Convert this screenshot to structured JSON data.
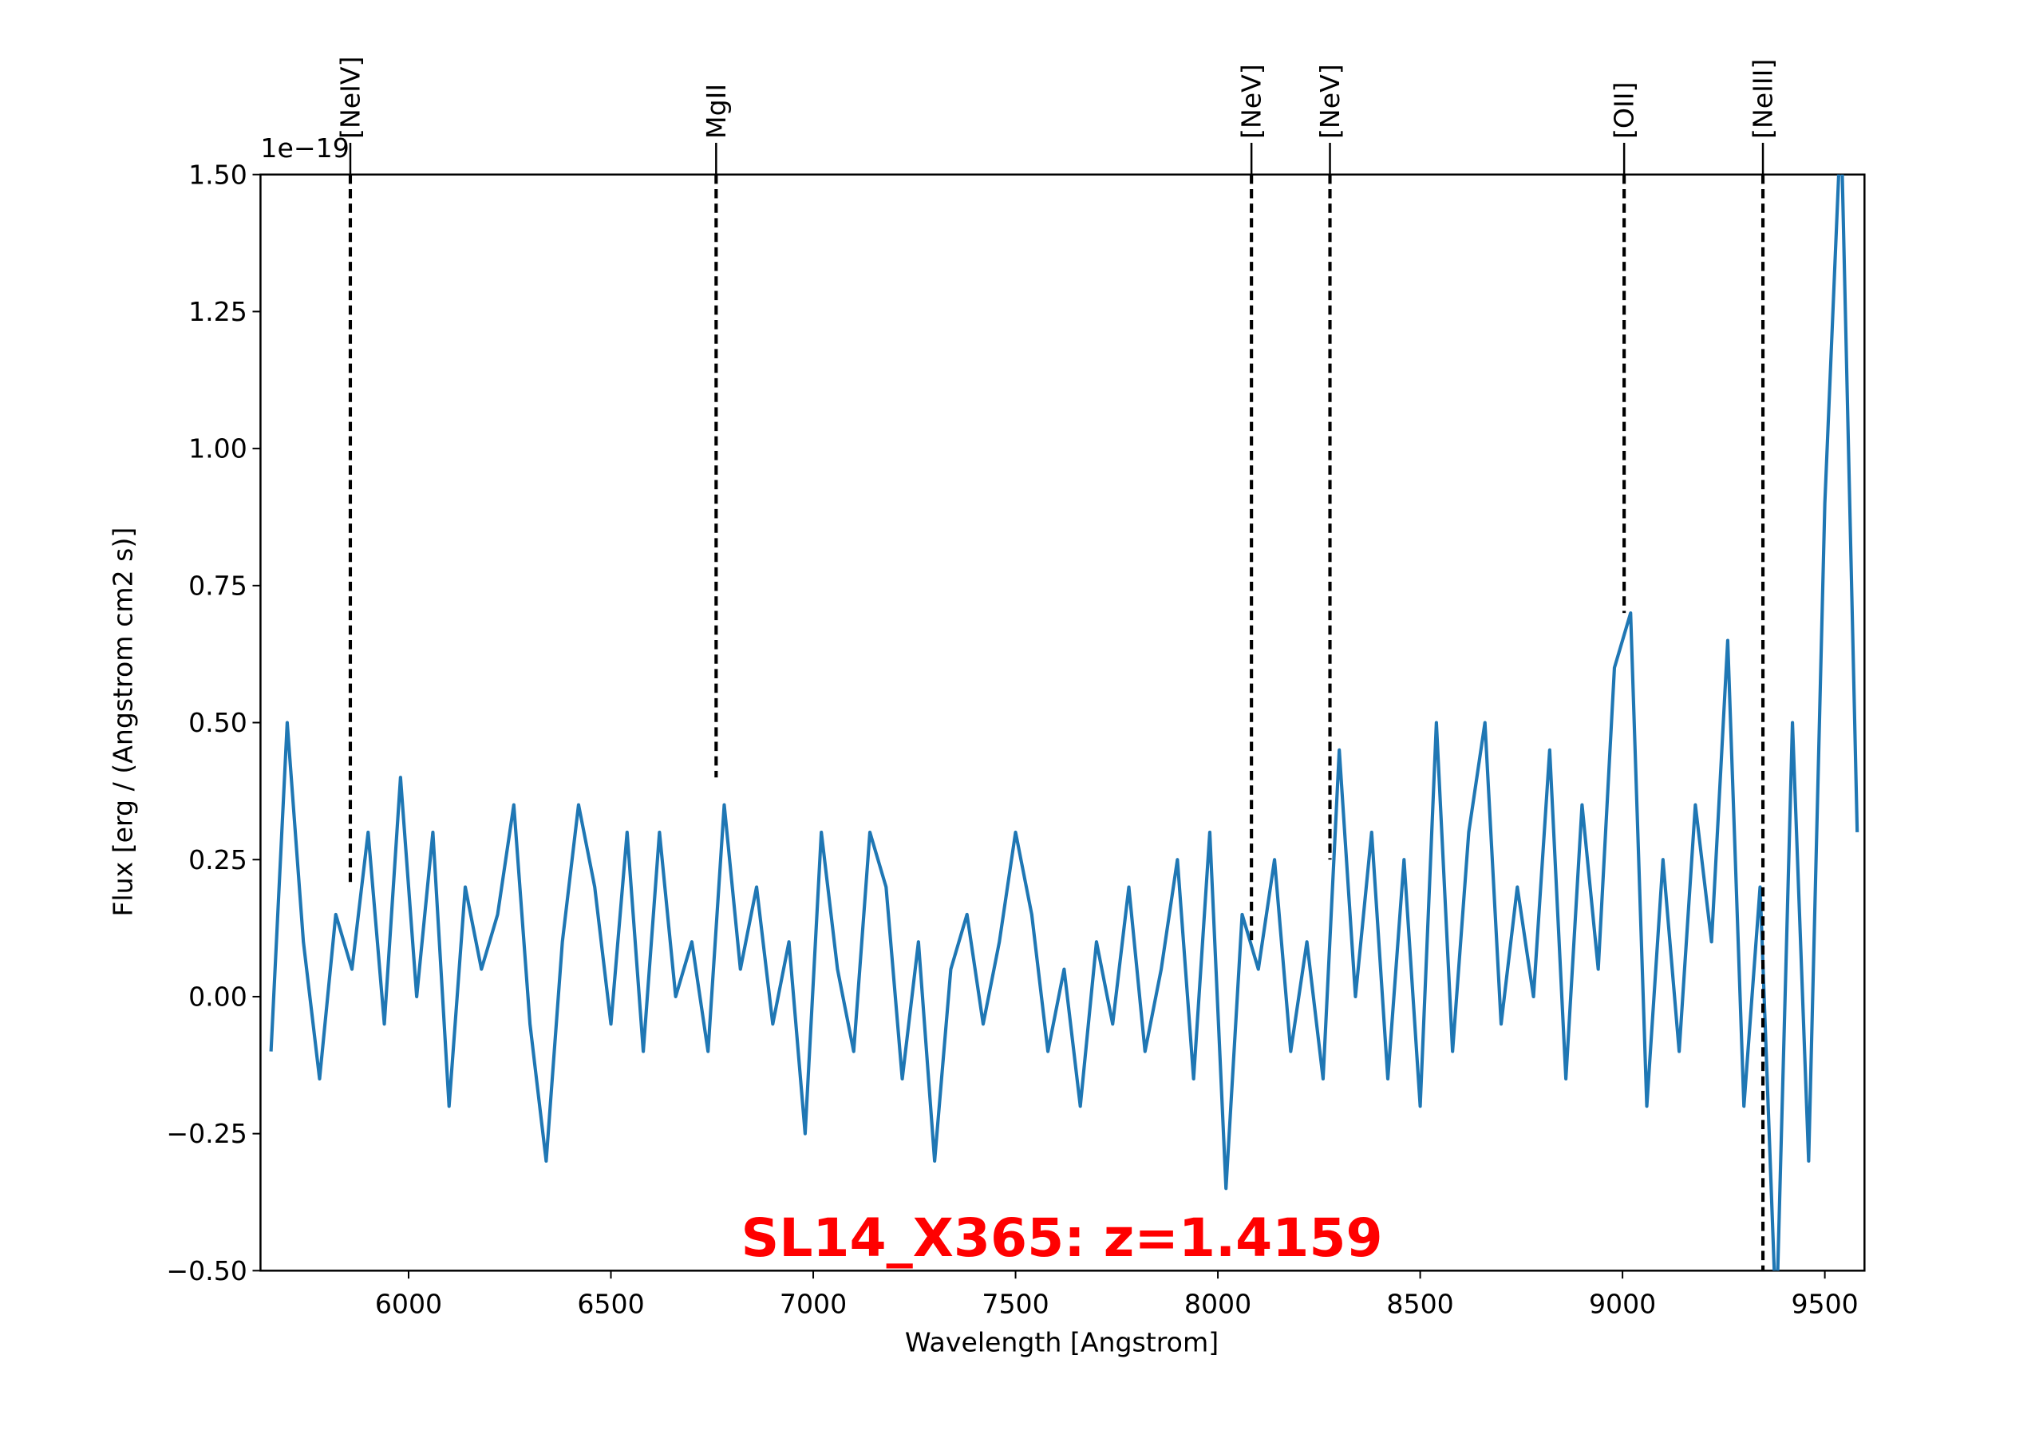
{
  "chart_data": {
    "type": "line",
    "title": "SL14_X365: z=1.4159",
    "xlabel": "Wavelength [Angstrom]",
    "ylabel": "Flux [erg / (Angstrom cm2 s)]",
    "y_offset_label": "1e−19",
    "xlim": [
      5634,
      9598
    ],
    "ylim": [
      -0.5,
      1.5
    ],
    "xticks": [
      6000,
      6500,
      7000,
      7500,
      8000,
      8500,
      9000,
      9500
    ],
    "yticks": [
      {
        "value": -0.5,
        "label": "−0.50"
      },
      {
        "value": -0.25,
        "label": "−0.25"
      },
      {
        "value": 0,
        "label": "0.00"
      },
      0.25,
      {
        "value": 0.5,
        "label": "0.50"
      },
      0.75,
      {
        "value": 1,
        "label": "1.00"
      },
      1.25,
      {
        "value": 1.5,
        "label": "1.50"
      }
    ],
    "x": [
      5660,
      5700,
      5740,
      5780,
      5820,
      5860,
      5900,
      5940,
      5980,
      6020,
      6060,
      6100,
      6140,
      6180,
      6220,
      6260,
      6300,
      6340,
      6380,
      6420,
      6460,
      6500,
      6540,
      6580,
      6620,
      6660,
      6700,
      6740,
      6780,
      6820,
      6860,
      6900,
      6940,
      6980,
      7020,
      7060,
      7100,
      7140,
      7180,
      7220,
      7260,
      7300,
      7340,
      7380,
      7420,
      7460,
      7500,
      7540,
      7580,
      7620,
      7660,
      7700,
      7740,
      7780,
      7820,
      7860,
      7900,
      7940,
      7980,
      8020,
      8060,
      8100,
      8140,
      8180,
      8220,
      8260,
      8300,
      8340,
      8380,
      8420,
      8460,
      8500,
      8540,
      8580,
      8620,
      8660,
      8700,
      8740,
      8780,
      8820,
      8860,
      8900,
      8940,
      8980,
      9020,
      9060,
      9100,
      9140,
      9180,
      9220,
      9260,
      9300,
      9340,
      9380,
      9420,
      9460,
      9500,
      9540,
      9580
    ],
    "series": [
      {
        "name": "Flux",
        "color": "#1f77b4",
        "values": [
          -0.1,
          0.5,
          0.1,
          -0.15,
          0.15,
          0.05,
          0.3,
          -0.05,
          0.4,
          0.0,
          0.3,
          -0.2,
          0.2,
          0.05,
          0.15,
          0.35,
          -0.05,
          -0.3,
          0.1,
          0.35,
          0.2,
          -0.05,
          0.3,
          -0.1,
          0.3,
          0.0,
          0.1,
          -0.1,
          0.35,
          0.05,
          0.2,
          -0.05,
          0.1,
          -0.25,
          0.3,
          0.05,
          -0.1,
          0.3,
          0.2,
          -0.15,
          0.1,
          -0.3,
          0.05,
          0.15,
          -0.05,
          0.1,
          0.3,
          0.15,
          -0.1,
          0.05,
          -0.2,
          0.1,
          -0.05,
          0.2,
          -0.1,
          0.05,
          0.25,
          -0.15,
          0.3,
          -0.35,
          0.15,
          0.05,
          0.25,
          -0.1,
          0.1,
          -0.15,
          0.45,
          0.0,
          0.3,
          -0.15,
          0.25,
          -0.2,
          0.5,
          -0.1,
          0.3,
          0.5,
          -0.05,
          0.2,
          0.0,
          0.45,
          -0.15,
          0.35,
          0.05,
          0.6,
          0.7,
          -0.2,
          0.25,
          -0.1,
          0.35,
          0.1,
          0.65,
          -0.2,
          0.2,
          -0.6,
          0.5,
          -0.3,
          0.9,
          1.6,
          0.3
        ]
      }
    ],
    "lines": [
      {
        "label": "[NeIV]",
        "x": 5856,
        "ymin": 0.2
      },
      {
        "label": "MgII",
        "x": 6760,
        "ymin": 0.4
      },
      {
        "label": "[NeV]",
        "x": 8083,
        "ymin": 0.1
      },
      {
        "label": "[NeV]",
        "x": 8277,
        "ymin": 0.25
      },
      {
        "label": "[OII]",
        "x": 9004,
        "ymin": 0.7
      },
      {
        "label": "[NeIII]",
        "x": 9347,
        "ymin": -0.5
      }
    ]
  }
}
